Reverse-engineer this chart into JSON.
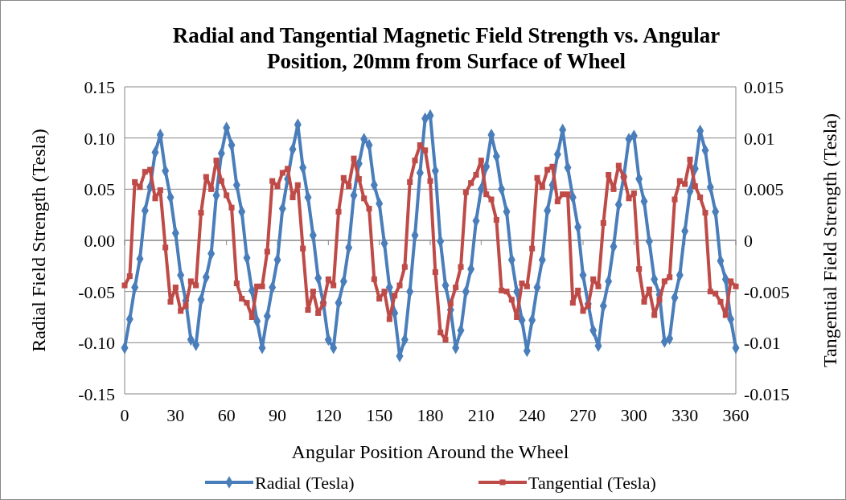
{
  "chart_data": {
    "type": "line",
    "title": "Radial and Tangential Magnetic Field Strength vs. Angular Position, 20mm from Surface of Wheel",
    "xlabel": "Angular Position Around the Wheel",
    "ylabel": "Radial Field Strength (Tesla)",
    "y2label": "Tangential Field Strength (Tesla)",
    "x": [
      0,
      3,
      6,
      9,
      12,
      15,
      18,
      21,
      24,
      27,
      30,
      33,
      36,
      39,
      42,
      45,
      48,
      51,
      54,
      57,
      60,
      63,
      66,
      69,
      72,
      75,
      78,
      81,
      84,
      87,
      90,
      93,
      96,
      99,
      102,
      105,
      108,
      111,
      114,
      117,
      120,
      123,
      126,
      129,
      132,
      135,
      138,
      141,
      144,
      147,
      150,
      153,
      156,
      159,
      162,
      165,
      168,
      171,
      174,
      177,
      180,
      183,
      186,
      189,
      192,
      195,
      198,
      201,
      204,
      207,
      210,
      213,
      216,
      219,
      222,
      225,
      228,
      231,
      234,
      237,
      240,
      243,
      246,
      249,
      252,
      255,
      258,
      261,
      264,
      267,
      270,
      273,
      276,
      279,
      282,
      285,
      288,
      291,
      294,
      297,
      300,
      303,
      306,
      309,
      312,
      315,
      318,
      321,
      324,
      327,
      330,
      333,
      336,
      339,
      342,
      345,
      348,
      351,
      354,
      357,
      360
    ],
    "series": [
      {
        "name": "Radial (Tesla)",
        "color": "#4a7ebb",
        "marker": "diamond",
        "values": [
          -0.105,
          -0.077,
          -0.046,
          -0.018,
          0.029,
          0.052,
          0.086,
          0.103,
          0.068,
          0.042,
          0.007,
          -0.034,
          -0.059,
          -0.097,
          -0.102,
          -0.058,
          -0.036,
          -0.013,
          0.044,
          0.085,
          0.11,
          0.093,
          0.054,
          0.028,
          -0.017,
          -0.049,
          -0.079,
          -0.105,
          -0.074,
          -0.046,
          -0.019,
          0.031,
          0.06,
          0.089,
          0.113,
          0.071,
          0.042,
          0.005,
          -0.037,
          -0.061,
          -0.097,
          -0.105,
          -0.061,
          -0.04,
          -0.007,
          0.044,
          0.075,
          0.099,
          0.093,
          0.054,
          0.036,
          -0.003,
          -0.046,
          -0.071,
          -0.113,
          -0.097,
          -0.05,
          0.005,
          0.066,
          0.119,
          0.122,
          0.068,
          -0.001,
          -0.044,
          -0.068,
          -0.105,
          -0.088,
          -0.05,
          -0.028,
          0.019,
          0.05,
          0.072,
          0.103,
          0.082,
          0.05,
          0.028,
          -0.019,
          -0.05,
          -0.078,
          -0.108,
          -0.078,
          -0.046,
          -0.019,
          0.029,
          0.054,
          0.084,
          0.108,
          0.071,
          0.042,
          0.013,
          -0.034,
          -0.062,
          -0.088,
          -0.103,
          -0.064,
          -0.04,
          -0.006,
          0.035,
          0.062,
          0.099,
          0.102,
          0.06,
          0.038,
          -0.001,
          -0.038,
          -0.053,
          -0.099,
          -0.096,
          -0.056,
          -0.034,
          0.009,
          0.048,
          0.07,
          0.107,
          0.088,
          0.052,
          0.028,
          -0.02,
          -0.038,
          -0.077,
          -0.105
        ]
      },
      {
        "name": "Tangential (Tesla)",
        "color": "#be4b48",
        "marker": "square",
        "axis": "y2",
        "values": [
          -0.0044,
          -0.0035,
          0.0057,
          0.0052,
          0.0067,
          0.0069,
          0.0041,
          0.0049,
          -0.0007,
          -0.006,
          -0.0046,
          -0.0069,
          -0.0064,
          -0.004,
          -0.0044,
          0.0027,
          0.0062,
          0.005,
          0.0078,
          0.0058,
          0.0044,
          0.0032,
          -0.0042,
          -0.0057,
          -0.0061,
          -0.0075,
          -0.0045,
          -0.0045,
          -0.0011,
          0.0058,
          0.0053,
          0.0066,
          0.007,
          0.0042,
          0.0054,
          -0.0008,
          -0.0068,
          -0.005,
          -0.0071,
          -0.0062,
          -0.0038,
          -0.0044,
          0.0028,
          0.0061,
          0.0053,
          0.008,
          0.006,
          0.0041,
          0.0031,
          -0.0038,
          -0.0057,
          -0.005,
          -0.0077,
          -0.0054,
          -0.0044,
          -0.0026,
          0.0057,
          0.0078,
          0.0093,
          0.0088,
          0.0058,
          -0.0031,
          -0.009,
          -0.0097,
          -0.0062,
          -0.0046,
          -0.0026,
          0.0047,
          0.0056,
          0.0064,
          0.0078,
          0.0045,
          0.004,
          0.002,
          -0.0049,
          -0.005,
          -0.0058,
          -0.0075,
          -0.0042,
          -0.0045,
          -0.0008,
          0.0061,
          0.0052,
          0.0069,
          0.0072,
          0.0038,
          0.0045,
          0.0045,
          -0.0061,
          -0.0049,
          -0.0069,
          -0.0064,
          -0.0038,
          -0.0045,
          0.0017,
          0.0064,
          0.005,
          0.0073,
          0.0062,
          0.0041,
          0.0046,
          -0.0028,
          -0.006,
          -0.0048,
          -0.0073,
          -0.0058,
          -0.004,
          -0.0036,
          0.004,
          0.0058,
          0.0055,
          0.0079,
          0.0053,
          0.0042,
          0.0027,
          -0.005,
          -0.0052,
          -0.006,
          -0.0073,
          -0.004,
          -0.0045
        ]
      }
    ],
    "xlim": [
      0,
      360
    ],
    "xticks": [
      0,
      30,
      60,
      90,
      120,
      150,
      180,
      210,
      240,
      270,
      300,
      330,
      360
    ],
    "ylim": [
      -0.15,
      0.15
    ],
    "yticks": [
      {
        "value": -0.15,
        "label": "-0.15"
      },
      {
        "value": -0.1,
        "label": "-0.10"
      },
      {
        "value": -0.05,
        "label": "-0.05"
      },
      {
        "value": 0,
        "label": "0.00"
      },
      {
        "value": 0.05,
        "label": "0.05"
      },
      {
        "value": 0.1,
        "label": "0.10"
      },
      {
        "value": 0.15,
        "label": "0.15"
      }
    ],
    "y2lim": [
      -0.015,
      0.015
    ],
    "y2ticks": [
      -0.015,
      -0.01,
      -0.005,
      0,
      0.005,
      0.01,
      0.015
    ],
    "grid": "y",
    "legend": "bottom",
    "line_style": "solid"
  }
}
